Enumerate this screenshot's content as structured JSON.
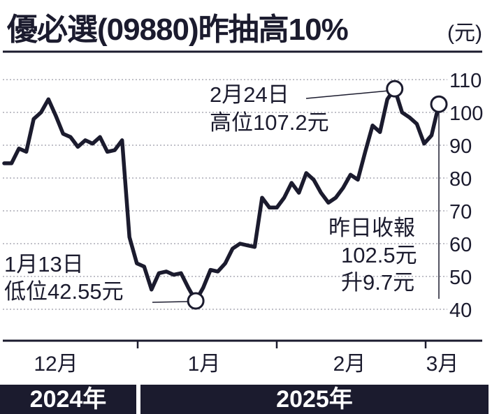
{
  "title": "優必選(09880)昨抽高10%",
  "unit": "(元)",
  "annotations": {
    "high_date": "2月24日",
    "high_value": "高位107.2元",
    "low_date": "1月13日",
    "low_value": "低位42.55元",
    "latest_line1": "昨日收報",
    "latest_line2": "102.5元",
    "latest_line3": "升9.7元"
  },
  "year_labels": [
    "2024年",
    "2025年"
  ],
  "colors": {
    "line": "#1b1b2e",
    "grid": "#9a9aa6",
    "bar": "#1b1b2e"
  },
  "chart_data": {
    "type": "line",
    "title": "",
    "xlabel": "",
    "ylabel": "(元)",
    "ylim": [
      40,
      110
    ],
    "yticks": [
      40,
      50,
      60,
      70,
      80,
      90,
      100,
      110
    ],
    "xtick_labels": [
      "12月",
      "1月",
      "2月",
      "3月"
    ],
    "grid": "horizontal dotted",
    "series": [
      {
        "values": [
          84.5,
          84.5,
          89,
          88,
          98,
          100,
          104,
          99,
          93.5,
          92.5,
          89.5,
          91.5,
          90.5,
          92.5,
          88,
          88.5,
          91.5,
          62,
          54,
          53,
          46,
          51,
          51.5,
          50.5,
          51,
          46.5,
          42.55,
          46.5,
          52,
          51.5,
          54,
          58.5,
          60,
          59.5,
          59,
          74,
          71,
          71,
          74,
          78.5,
          75.5,
          81.5,
          79.5,
          75.5,
          72.5,
          74,
          77,
          81,
          79.5,
          88,
          96,
          94,
          104,
          107.2,
          100,
          98.5,
          96.5,
          90.5,
          93,
          102.5
        ]
      }
    ],
    "highlights": [
      {
        "label": "2月24日 高位107.2元",
        "value": 107.2
      },
      {
        "label": "1月13日 低位42.55元",
        "value": 42.55
      },
      {
        "label": "昨日收報 102.5元",
        "value": 102.5
      }
    ]
  }
}
